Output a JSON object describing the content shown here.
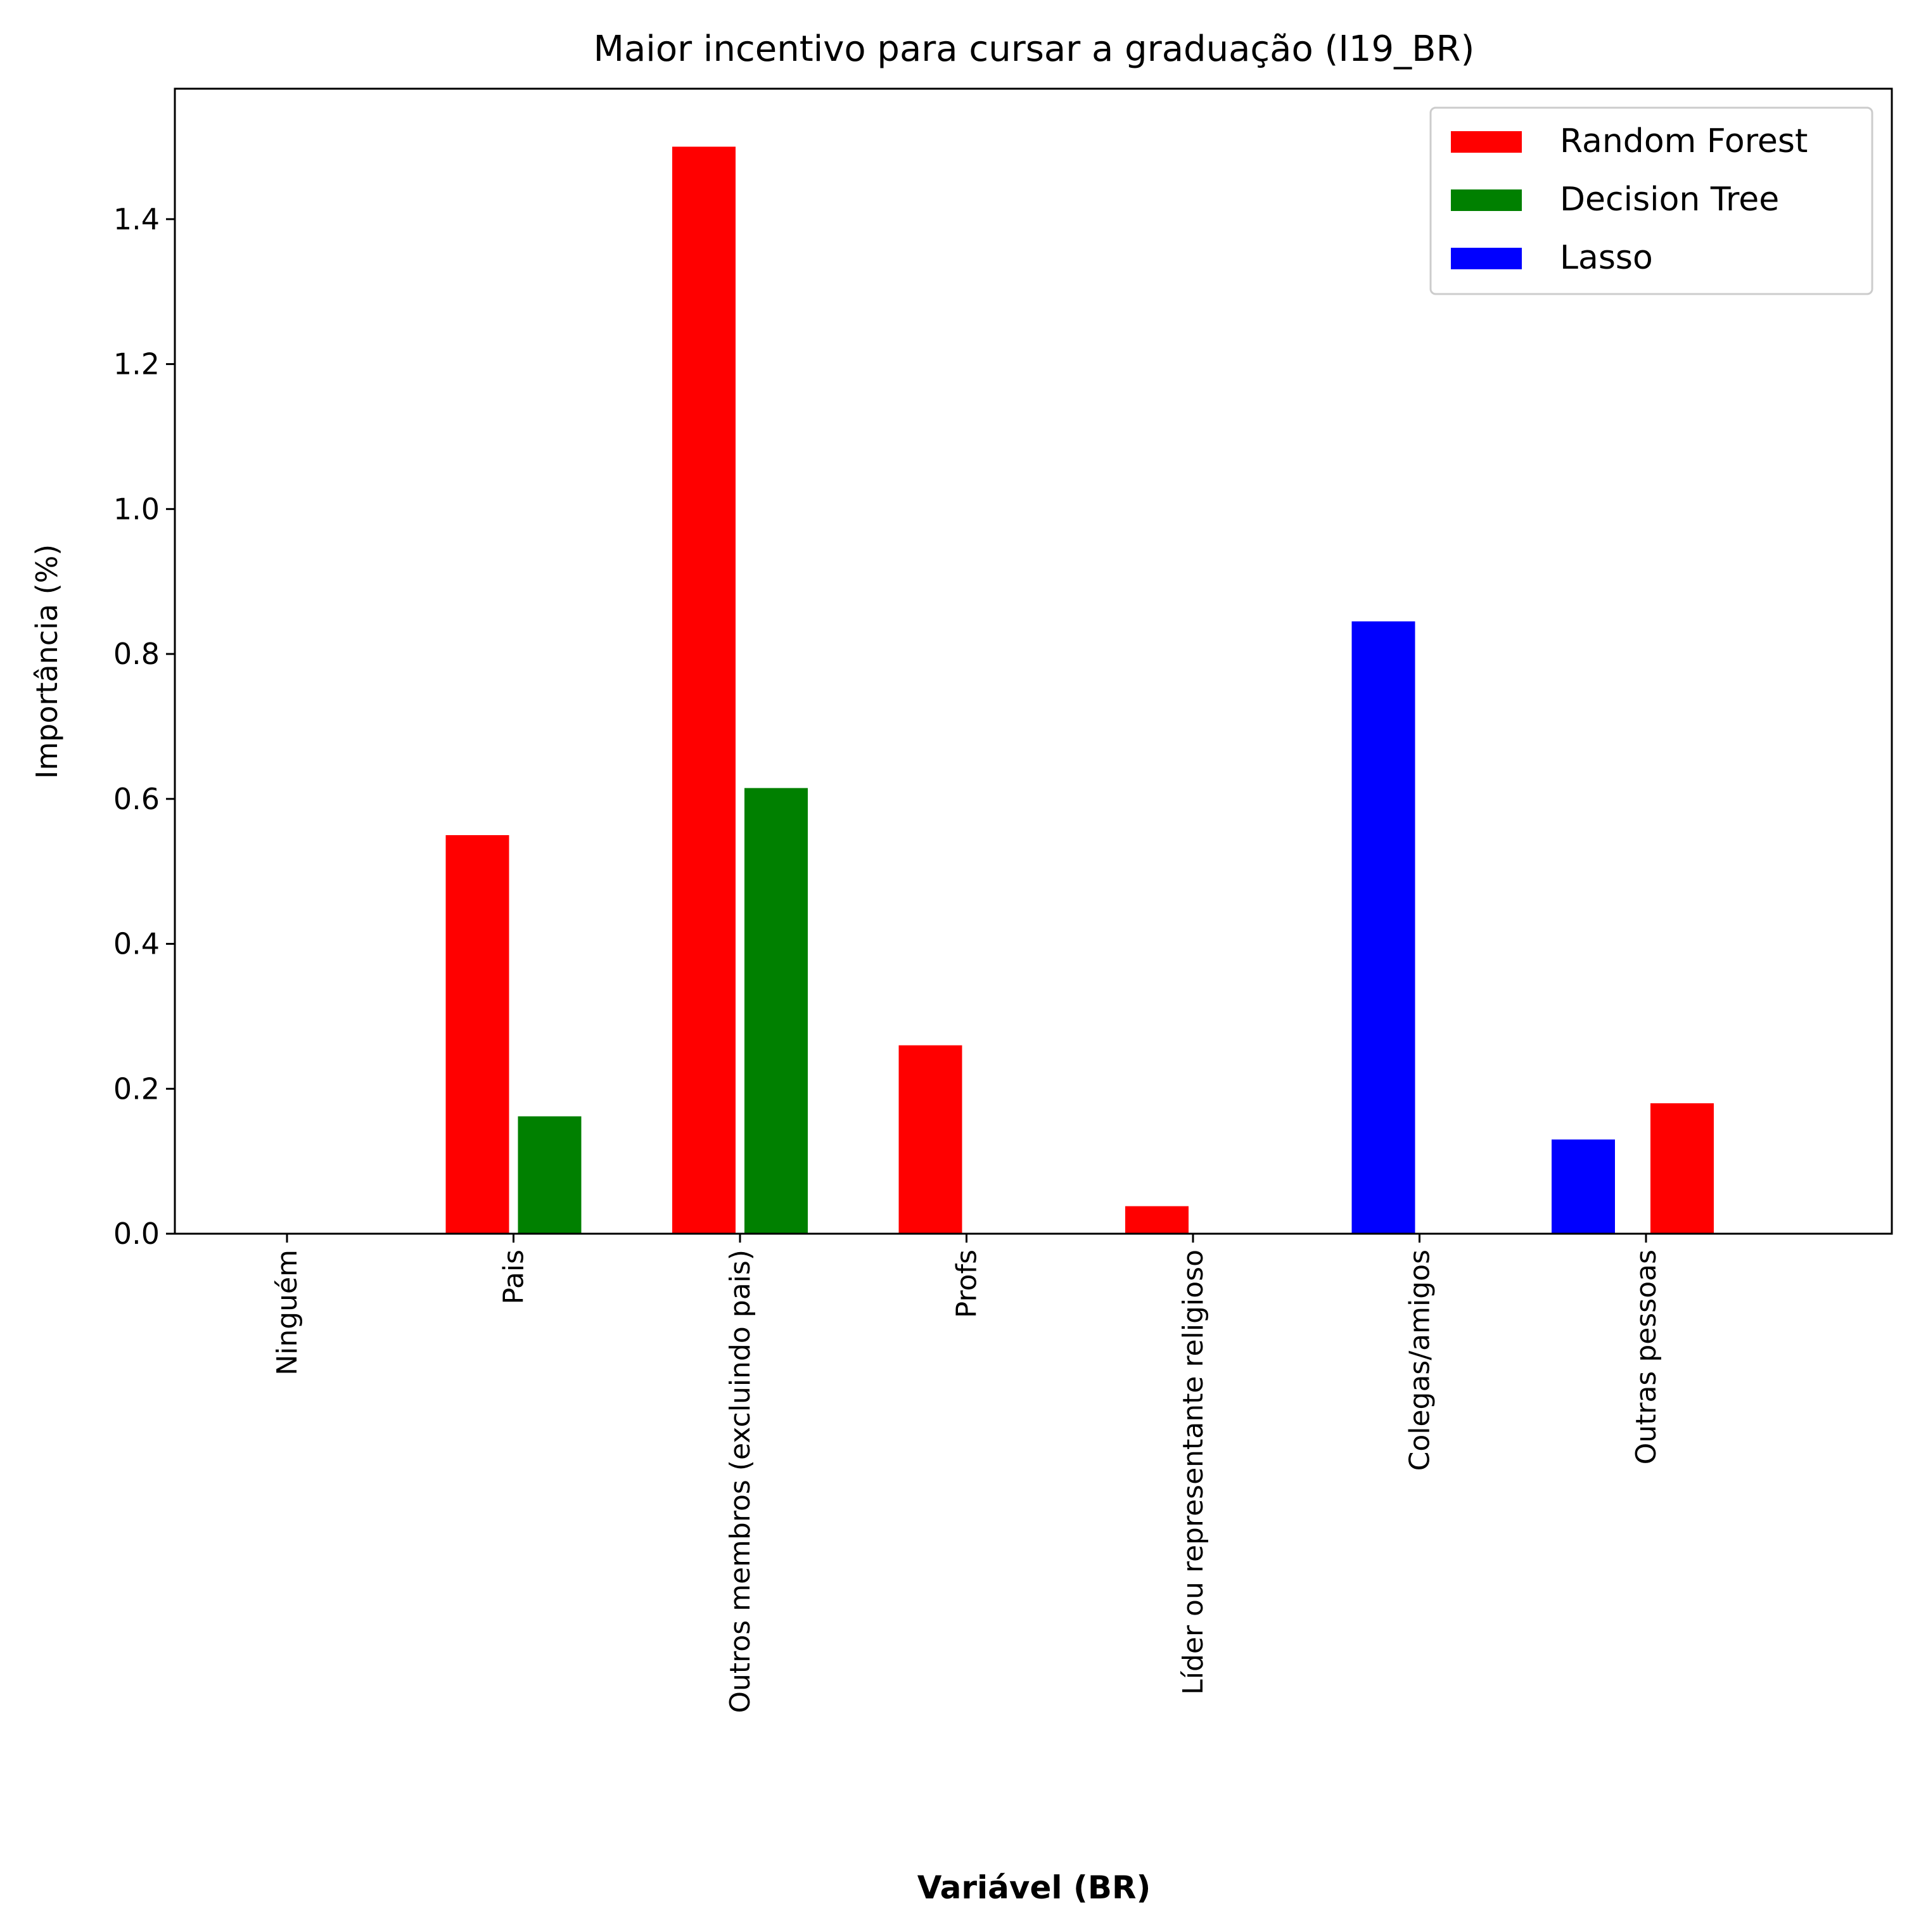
{
  "chart_data": {
    "type": "bar",
    "title": "Maior incentivo para cursar a graduação (I19_BR)",
    "xlabel": "Variável (BR)",
    "ylabel": "Importância (%)",
    "ylim": [
      0,
      1.58
    ],
    "yticks": [
      0.0,
      0.2,
      0.4,
      0.6,
      0.8,
      1.0,
      1.2,
      1.4
    ],
    "ytick_labels": [
      "0.0",
      "0.2",
      "0.4",
      "0.6",
      "0.8",
      "1.0",
      "1.2",
      "1.4"
    ],
    "categories": [
      "Ninguém",
      "Pais",
      "Outros membros (excluindo pais)",
      "Profs",
      "Líder ou representante religioso",
      "Colegas/amigos",
      "Outras pessoas"
    ],
    "legend_position": "top-right",
    "grid": false,
    "series": [
      {
        "name": "Random Forest",
        "color": "#ff0000",
        "bars": [
          {
            "category": "Pais",
            "value": 0.55
          },
          {
            "category": "Outros membros (excluindo pais)",
            "value": 1.5
          },
          {
            "category": "Profs",
            "value": 0.26
          },
          {
            "category": "Líder ou representante religioso",
            "value": 0.038
          },
          {
            "category": "Outras pessoas",
            "value": 0.18
          }
        ]
      },
      {
        "name": "Decision Tree",
        "color": "#008000",
        "bars": [
          {
            "category": "Pais",
            "value": 0.162
          },
          {
            "category": "Outros membros (excluindo pais)",
            "value": 0.615
          }
        ]
      },
      {
        "name": "Lasso",
        "color": "#0000ff",
        "bars": [
          {
            "category": "Colegas/amigos",
            "value": 0.845
          },
          {
            "category": "Outras pessoas",
            "value": 0.13
          }
        ]
      }
    ]
  }
}
